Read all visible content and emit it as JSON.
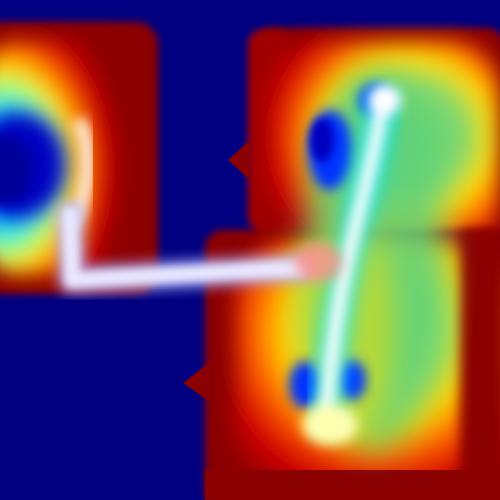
{
  "image": {
    "kind": "heatmap-overlay",
    "colormap": "jet",
    "colors": {
      "background": "#000080",
      "deep_red": "#8b0000",
      "red": "#d40000",
      "orange": "#ff6a00",
      "yellow": "#ffe000",
      "green": "#5fd27a",
      "cyan": "#00e5ff",
      "blue": "#0033ff",
      "navy": "#000099",
      "white": "#ffffff",
      "lavender": "#d8d8ff"
    }
  }
}
